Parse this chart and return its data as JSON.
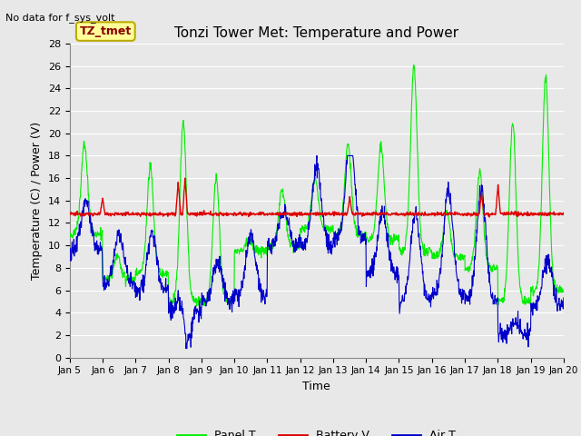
{
  "title": "Tonzi Tower Met: Temperature and Power",
  "no_data_label": "No data for f_sys_volt",
  "dataset_label": "TZ_tmet",
  "xlabel": "Time",
  "ylabel": "Temperature (C) / Power (V)",
  "ylim": [
    0,
    28
  ],
  "yticks": [
    0,
    2,
    4,
    6,
    8,
    10,
    12,
    14,
    16,
    18,
    20,
    22,
    24,
    26,
    28
  ],
  "xtick_labels": [
    "Jan 5",
    "Jan 6",
    "Jan 7",
    "Jan 8",
    "Jan 9",
    "Jan 10",
    "Jan 11",
    "Jan 12",
    "Jan 13",
    "Jan 14",
    "Jan 15",
    "Jan 16",
    "Jan 17",
    "Jan 18",
    "Jan 19",
    "Jan 20"
  ],
  "bg_color": "#e8e8e8",
  "plot_bg_color": "#e8e8e8",
  "grid_color": "#ffffff",
  "panel_t_color": "#00ee00",
  "battery_v_color": "#dd0000",
  "air_t_color": "#0000cc",
  "legend_labels": [
    "Panel T",
    "Battery V",
    "Air T"
  ],
  "legend_colors": [
    "#00ee00",
    "#dd0000",
    "#0000cc"
  ],
  "title_fontsize": 11,
  "label_fontsize": 9,
  "tick_fontsize": 8,
  "dataset_box_facecolor": "#ffff99",
  "dataset_box_edgecolor": "#bbaa00",
  "dataset_text_color": "#880000"
}
